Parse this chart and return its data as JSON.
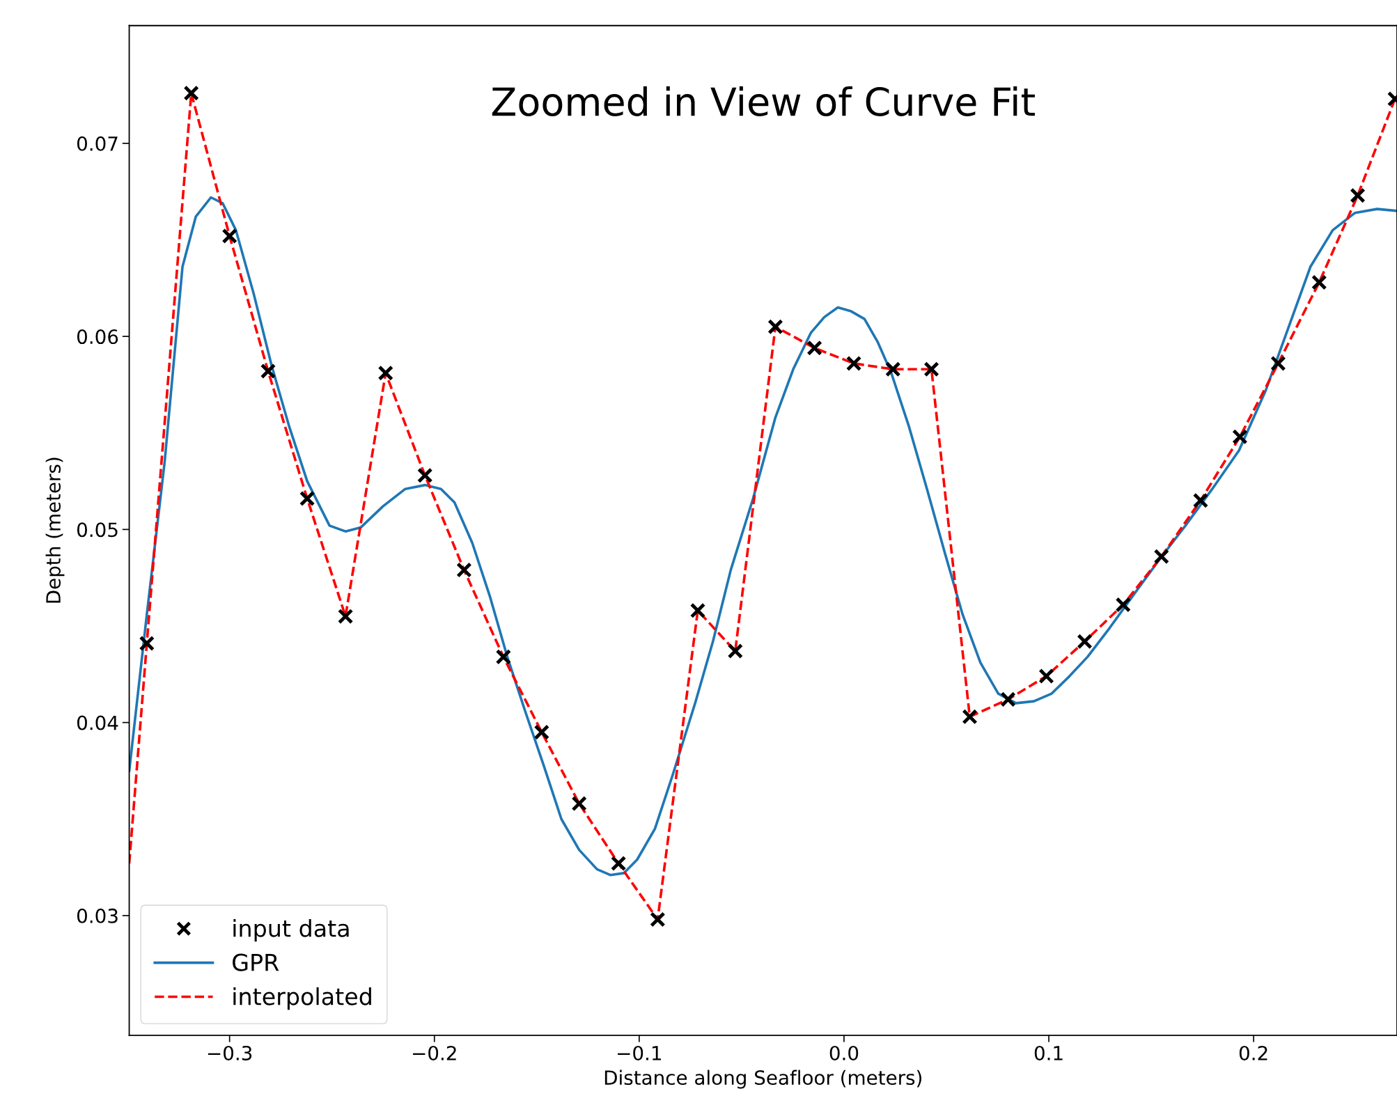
{
  "chart_data": {
    "type": "line",
    "title": "Zoomed in View of Curve Fit",
    "xlabel": "Distance along Seafloor (meters)",
    "ylabel": "Depth (meters)",
    "xlim": [
      -0.349,
      0.27
    ],
    "ylim": [
      0.0238,
      0.0761
    ],
    "xticks": [
      {
        "value": -0.3,
        "label": "−0.3"
      },
      {
        "value": -0.2,
        "label": "−0.2"
      },
      {
        "value": -0.1,
        "label": "−0.1"
      },
      {
        "value": 0.0,
        "label": "0.0"
      },
      {
        "value": 0.1,
        "label": "0.1"
      },
      {
        "value": 0.2,
        "label": "0.2"
      }
    ],
    "yticks": [
      {
        "value": 0.03,
        "label": "0.03"
      },
      {
        "value": 0.04,
        "label": "0.04"
      },
      {
        "value": 0.05,
        "label": "0.05"
      },
      {
        "value": 0.06,
        "label": "0.06"
      },
      {
        "value": 0.07,
        "label": "0.07"
      }
    ],
    "grid": false,
    "legend": "bottom left",
    "series": [
      {
        "name": "input data",
        "type": "scatter",
        "marker": "cross",
        "color": "#000000",
        "x": [
          -0.3404,
          -0.3187,
          -0.3,
          -0.2812,
          -0.2621,
          -0.2434,
          -0.2238,
          -0.2046,
          -0.1855,
          -0.1663,
          -0.1476,
          -0.1293,
          -0.1101,
          -0.091,
          -0.0714,
          -0.0531,
          -0.0335,
          -0.0144,
          0.0048,
          0.0239,
          0.0427,
          0.0614,
          0.0801,
          0.0988,
          0.1175,
          0.1363,
          0.155,
          0.1741,
          0.1933,
          0.212,
          0.232,
          0.2508,
          0.269
        ],
        "values": [
          0.0441,
          0.0726,
          0.0652,
          0.0582,
          0.0516,
          0.0455,
          0.0581,
          0.0528,
          0.0479,
          0.0434,
          0.0395,
          0.0358,
          0.0327,
          0.0298,
          0.0458,
          0.0437,
          0.0605,
          0.0594,
          0.0586,
          0.0583,
          0.0583,
          0.0403,
          0.0412,
          0.0424,
          0.0442,
          0.0461,
          0.0486,
          0.0515,
          0.0548,
          0.0586,
          0.0628,
          0.0673,
          0.0723
        ]
      },
      {
        "name": "GPR",
        "line_style": "solid",
        "color": "#1f77b4",
        "x": [
          -0.349,
          -0.3404,
          -0.3317,
          -0.323,
          -0.3165,
          -0.3091,
          -0.3034,
          -0.2969,
          -0.2882,
          -0.2795,
          -0.2708,
          -0.2621,
          -0.2512,
          -0.2434,
          -0.236,
          -0.2251,
          -0.2142,
          -0.2046,
          -0.1968,
          -0.1902,
          -0.1815,
          -0.1728,
          -0.1641,
          -0.1554,
          -0.1467,
          -0.138,
          -0.1293,
          -0.1206,
          -0.1141,
          -0.1075,
          -0.101,
          -0.0923,
          -0.0836,
          -0.0727,
          -0.064,
          -0.0553,
          -0.0444,
          -0.0335,
          -0.0248,
          -0.0161,
          -0.0096,
          -0.003,
          0.0035,
          0.01,
          0.0165,
          0.0231,
          0.0318,
          0.0405,
          0.0492,
          0.0579,
          0.0666,
          0.0753,
          0.084,
          0.0927,
          0.1014,
          0.1101,
          0.1189,
          0.1297,
          0.1406,
          0.1537,
          0.1667,
          0.1798,
          0.1929,
          0.2059,
          0.2168,
          0.2277,
          0.2386,
          0.2495,
          0.2603,
          0.27
        ],
        "values": [
          0.0375,
          0.0456,
          0.0535,
          0.0636,
          0.0662,
          0.0672,
          0.0669,
          0.0655,
          0.0622,
          0.0585,
          0.0553,
          0.0525,
          0.0502,
          0.0499,
          0.0501,
          0.0512,
          0.0521,
          0.0523,
          0.0521,
          0.0514,
          0.0493,
          0.0465,
          0.0433,
          0.0405,
          0.0378,
          0.035,
          0.0334,
          0.0324,
          0.0321,
          0.0322,
          0.0329,
          0.0345,
          0.0373,
          0.041,
          0.0442,
          0.0479,
          0.0516,
          0.0558,
          0.0583,
          0.0602,
          0.061,
          0.0615,
          0.0613,
          0.0609,
          0.0597,
          0.0581,
          0.0553,
          0.0521,
          0.0488,
          0.0456,
          0.0431,
          0.0415,
          0.041,
          0.0411,
          0.0415,
          0.0424,
          0.0434,
          0.0449,
          0.0465,
          0.0484,
          0.0502,
          0.0521,
          0.0541,
          0.0572,
          0.0604,
          0.0636,
          0.0655,
          0.0664,
          0.0666,
          0.0665
        ]
      },
      {
        "name": "interpolated",
        "line_style": "dashed",
        "color": "#ff0000",
        "x": [
          -0.349,
          -0.3404,
          -0.3187,
          -0.3,
          -0.2812,
          -0.2621,
          -0.2434,
          -0.2238,
          -0.2046,
          -0.1855,
          -0.1663,
          -0.1476,
          -0.1293,
          -0.1101,
          -0.091,
          -0.0714,
          -0.0531,
          -0.0335,
          -0.0144,
          0.0048,
          0.0239,
          0.0427,
          0.0614,
          0.0801,
          0.0988,
          0.1175,
          0.1363,
          0.155,
          0.1741,
          0.1933,
          0.212,
          0.232,
          0.2508,
          0.269
        ],
        "values": [
          0.0327,
          0.0441,
          0.0726,
          0.0652,
          0.0582,
          0.0516,
          0.0455,
          0.0581,
          0.0528,
          0.0479,
          0.0434,
          0.0395,
          0.0358,
          0.0327,
          0.0298,
          0.0458,
          0.0437,
          0.0605,
          0.0594,
          0.0586,
          0.0583,
          0.0583,
          0.0403,
          0.0412,
          0.0424,
          0.0442,
          0.0461,
          0.0486,
          0.0515,
          0.0548,
          0.0586,
          0.0628,
          0.0673,
          0.0723
        ]
      }
    ]
  }
}
